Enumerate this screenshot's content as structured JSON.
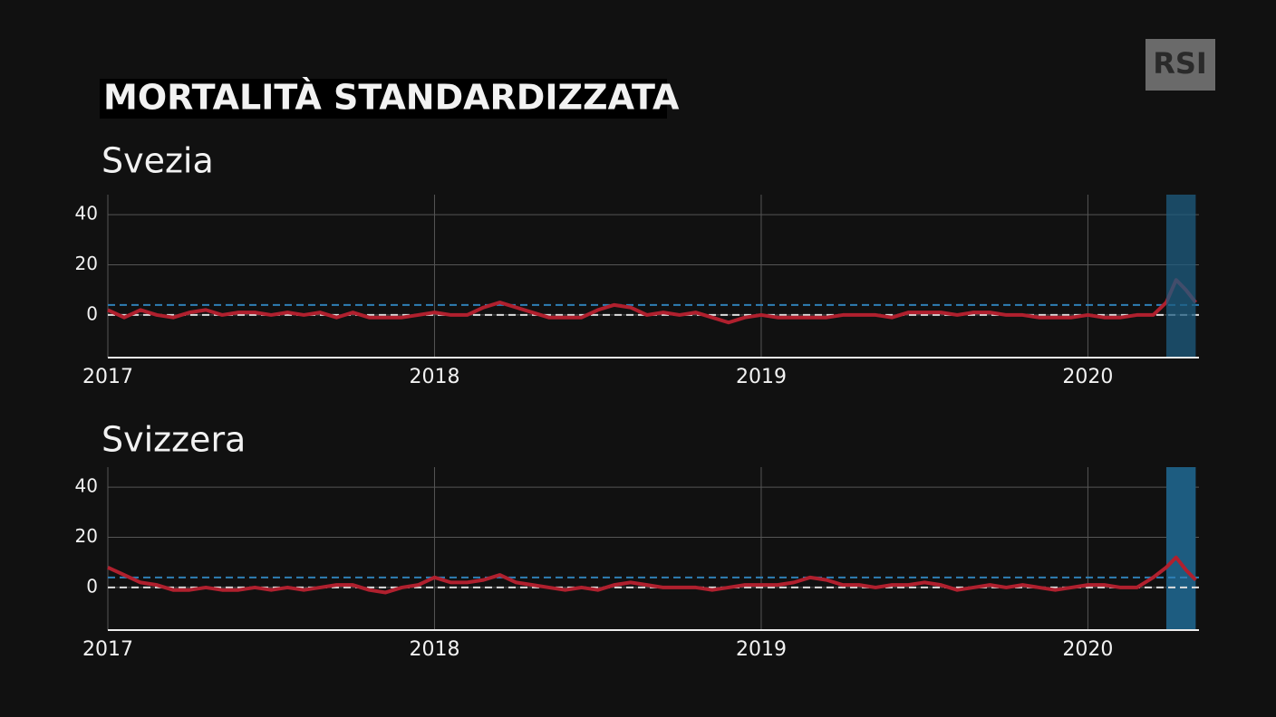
{
  "header": {
    "title": "MORTALITÀ STANDARDIZZATA",
    "logo": "RSI"
  },
  "chart_data": [
    {
      "type": "line",
      "title": "Svezia",
      "x": [
        2017,
        2017.05,
        2017.1,
        2017.15,
        2017.2,
        2017.25,
        2017.3,
        2017.35,
        2017.4,
        2017.45,
        2017.5,
        2017.55,
        2017.6,
        2017.65,
        2017.7,
        2017.75,
        2017.8,
        2017.85,
        2017.9,
        2017.95,
        2018,
        2018.05,
        2018.1,
        2018.15,
        2018.2,
        2018.25,
        2018.3,
        2018.35,
        2018.4,
        2018.45,
        2018.5,
        2018.55,
        2018.6,
        2018.65,
        2018.7,
        2018.75,
        2018.8,
        2018.85,
        2018.9,
        2018.95,
        2019,
        2019.05,
        2019.1,
        2019.15,
        2019.2,
        2019.25,
        2019.3,
        2019.35,
        2019.4,
        2019.45,
        2019.5,
        2019.55,
        2019.6,
        2019.65,
        2019.7,
        2019.75,
        2019.8,
        2019.85,
        2019.9,
        2019.95,
        2020,
        2020.05,
        2020.1,
        2020.15,
        2020.2,
        2020.24,
        2020.27,
        2020.3,
        2020.33
      ],
      "series": [
        {
          "color": "#b0202e",
          "values": [
            2,
            -1,
            2,
            0,
            -1,
            1,
            2,
            0,
            1,
            1,
            0,
            1,
            0,
            1,
            -1,
            1,
            -1,
            -1,
            -1,
            0,
            1,
            0,
            0,
            3,
            5,
            3,
            1,
            -1,
            -1,
            -1,
            2,
            4,
            3,
            0,
            1,
            0,
            1,
            -1,
            -3,
            -1,
            0,
            -1,
            -1,
            -1,
            -1,
            0,
            0,
            0,
            -1,
            1,
            1,
            1,
            0,
            1,
            1,
            0,
            0,
            -1,
            -1,
            -1,
            0,
            -1,
            -1,
            0,
            0,
            5,
            14,
            10,
            5
          ]
        }
      ],
      "xlim": [
        2017,
        2020.34
      ],
      "xticks": [
        2017,
        2018,
        2019,
        2020
      ],
      "ylim": [
        -17,
        48
      ],
      "yticks": [
        0,
        20,
        40
      ],
      "grid": true,
      "hlines": [
        {
          "value": 4,
          "color": "#2f7fb5"
        },
        {
          "value": 0,
          "color": "#dddddd"
        }
      ],
      "highlight": {
        "range": [
          2020.24,
          2020.33
        ],
        "color": "#1d5c80",
        "on_top": true
      }
    },
    {
      "type": "line",
      "title": "Svizzera",
      "x": [
        2017,
        2017.05,
        2017.1,
        2017.15,
        2017.2,
        2017.25,
        2017.3,
        2017.35,
        2017.4,
        2017.45,
        2017.5,
        2017.55,
        2017.6,
        2017.65,
        2017.7,
        2017.75,
        2017.8,
        2017.85,
        2017.9,
        2017.95,
        2018,
        2018.05,
        2018.1,
        2018.15,
        2018.2,
        2018.25,
        2018.3,
        2018.35,
        2018.4,
        2018.45,
        2018.5,
        2018.55,
        2018.6,
        2018.65,
        2018.7,
        2018.75,
        2018.8,
        2018.85,
        2018.9,
        2018.95,
        2019,
        2019.05,
        2019.1,
        2019.15,
        2019.2,
        2019.25,
        2019.3,
        2019.35,
        2019.4,
        2019.45,
        2019.5,
        2019.55,
        2019.6,
        2019.65,
        2019.7,
        2019.75,
        2019.8,
        2019.85,
        2019.9,
        2019.95,
        2020,
        2020.05,
        2020.1,
        2020.15,
        2020.2,
        2020.24,
        2020.27,
        2020.3,
        2020.33
      ],
      "series": [
        {
          "color": "#b0202e",
          "values": [
            8,
            5,
            2,
            1,
            -1,
            -1,
            0,
            -1,
            -1,
            0,
            -1,
            0,
            -1,
            0,
            1,
            1,
            -1,
            -2,
            0,
            1,
            4,
            2,
            2,
            3,
            5,
            2,
            1,
            0,
            -1,
            0,
            -1,
            1,
            2,
            1,
            0,
            0,
            0,
            -1,
            0,
            1,
            1,
            1,
            2,
            4,
            3,
            1,
            1,
            0,
            1,
            1,
            2,
            1,
            -1,
            0,
            1,
            0,
            1,
            0,
            -1,
            0,
            1,
            1,
            0,
            0,
            4,
            8,
            12,
            7,
            3
          ]
        }
      ],
      "xlim": [
        2017,
        2020.34
      ],
      "xticks": [
        2017,
        2018,
        2019,
        2020
      ],
      "ylim": [
        -17,
        48
      ],
      "yticks": [
        0,
        20,
        40
      ],
      "grid": true,
      "hlines": [
        {
          "value": 4,
          "color": "#2f7fb5"
        },
        {
          "value": 0,
          "color": "#dddddd"
        }
      ],
      "highlight": {
        "range": [
          2020.24,
          2020.33
        ],
        "color": "#1d5c80",
        "on_top": false
      }
    }
  ]
}
